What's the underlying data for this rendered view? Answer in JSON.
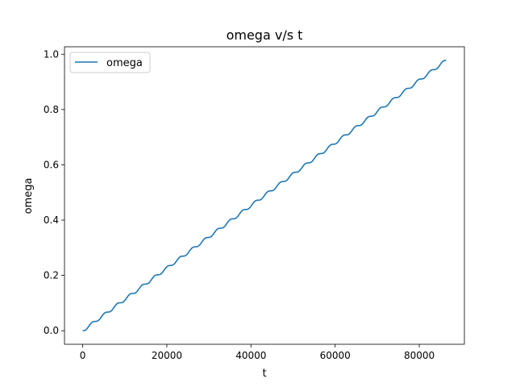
{
  "chart_data": {
    "type": "line",
    "title": "omega v/s t",
    "xlabel": "t",
    "ylabel": "omega",
    "xlim": [
      -4320,
      90720
    ],
    "ylim": [
      -0.049,
      1.027
    ],
    "xticks": [
      0,
      20000,
      40000,
      60000,
      80000
    ],
    "xtick_labels": [
      "0",
      "20000",
      "40000",
      "60000",
      "80000"
    ],
    "yticks": [
      0.0,
      0.2,
      0.4,
      0.6,
      0.8,
      1.0
    ],
    "ytick_labels": [
      "0.0",
      "0.2",
      "0.4",
      "0.6",
      "0.8",
      "1.0"
    ],
    "grid": false,
    "legend": {
      "position": "top-left",
      "entries": [
        "omega"
      ]
    },
    "series": [
      {
        "name": "omega",
        "color": "#1f77b4",
        "x_start": 0,
        "x_end": 86400,
        "y_start": 0.0,
        "y_end": 0.978,
        "steps": 29,
        "step_period": 2979,
        "description_y": "rises linearly from 0.0 at t=0 to about 0.978 at t=86400 with periodic staircase ripples"
      }
    ]
  }
}
